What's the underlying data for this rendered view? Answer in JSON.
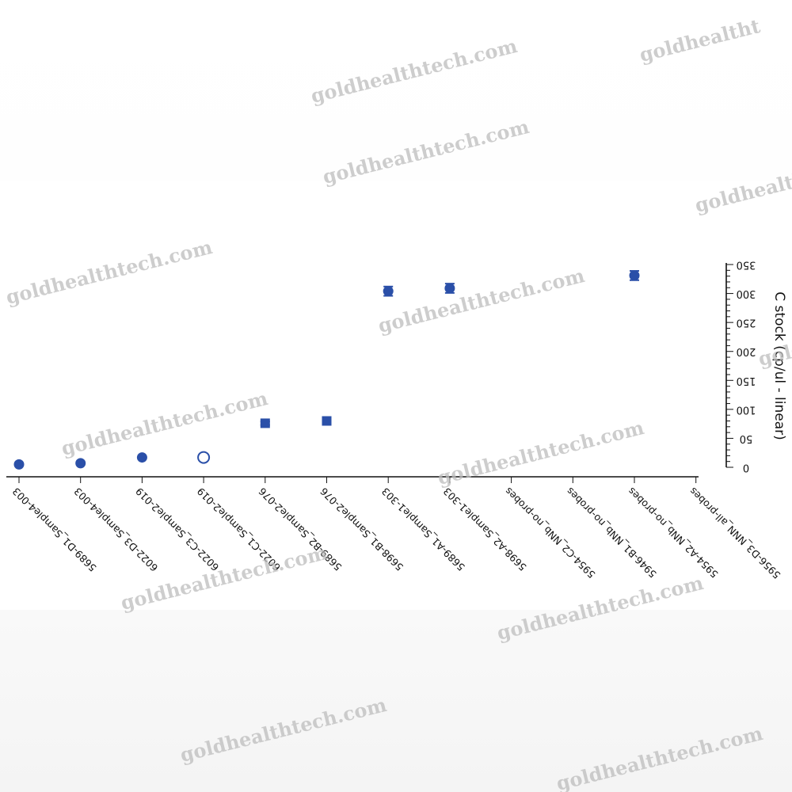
{
  "chart_data": {
    "type": "scatter",
    "title": "",
    "xlabel": "",
    "ylabel": "C stock (cp/ul - linear)",
    "ylim": [
      0,
      350
    ],
    "yticks": [
      0,
      50,
      100,
      150,
      200,
      250,
      300,
      350
    ],
    "grid": false,
    "orientation": "rotated-180",
    "color": "#2a4fa8",
    "categories": [
      "5689-D1_Sample4-003",
      "6022-D3_Sample4-003",
      "6022-C3_Sample2-019",
      "6022-C1_Sample2-019",
      "5689-B2_Sample2-076",
      "5698-B1_Sample2-076",
      "5689-A1_Sample1-303",
      "5698-A2_Sample1-303",
      "5954-C2_NNb_no-probes",
      "5946-B1_NNb_no-probes",
      "5954-A2_NNb_no-probes",
      "5956-D3_NNN_all-probes"
    ],
    "points": [
      {
        "category": "5689-D1_Sample4-003",
        "value": 5,
        "error": null,
        "marker": "filled-circle"
      },
      {
        "category": "6022-D3_Sample4-003",
        "value": 7,
        "error": null,
        "marker": "filled-circle"
      },
      {
        "category": "6022-C3_Sample2-019",
        "value": 17,
        "error": null,
        "marker": "filled-circle"
      },
      {
        "category": "6022-C1_Sample2-019",
        "value": 17,
        "error": null,
        "marker": "open-circle"
      },
      {
        "category": "5689-B2_Sample2-076",
        "value": 76,
        "error": 3,
        "marker": "filled-square"
      },
      {
        "category": "5698-B1_Sample2-076",
        "value": 80,
        "error": 3,
        "marker": "filled-square"
      },
      {
        "category": "5689-A1_Sample1-303",
        "value": 304,
        "error": 8,
        "marker": "filled-circle"
      },
      {
        "category": "5698-A2_Sample1-303",
        "value": 309,
        "error": 8,
        "marker": "filled-circle"
      },
      {
        "category": "5954-C2_NNb_no-probes",
        "value": null,
        "error": null,
        "marker": "none"
      },
      {
        "category": "5946-B1_NNb_no-probes",
        "value": null,
        "error": null,
        "marker": "none"
      },
      {
        "category": "5954-A2_NNb_no-probes",
        "value": 331,
        "error": 8,
        "marker": "filled-circle"
      },
      {
        "category": "5956-D3_NNN_all-probes",
        "value": null,
        "error": null,
        "marker": "none"
      }
    ]
  },
  "watermarks": [
    "goldhealtht",
    "goldhealthtech.com",
    "goldhealthtech.com",
    "goldhealthtech.com",
    "goldhealthtech.com",
    "goldhealthtech.com",
    "goldhealthtech.com",
    "goldhealthtech.com",
    "goldhealthtech.com",
    "goldhealthtech.com",
    "goldhealthtech.com",
    "goldhealth",
    "gold"
  ]
}
